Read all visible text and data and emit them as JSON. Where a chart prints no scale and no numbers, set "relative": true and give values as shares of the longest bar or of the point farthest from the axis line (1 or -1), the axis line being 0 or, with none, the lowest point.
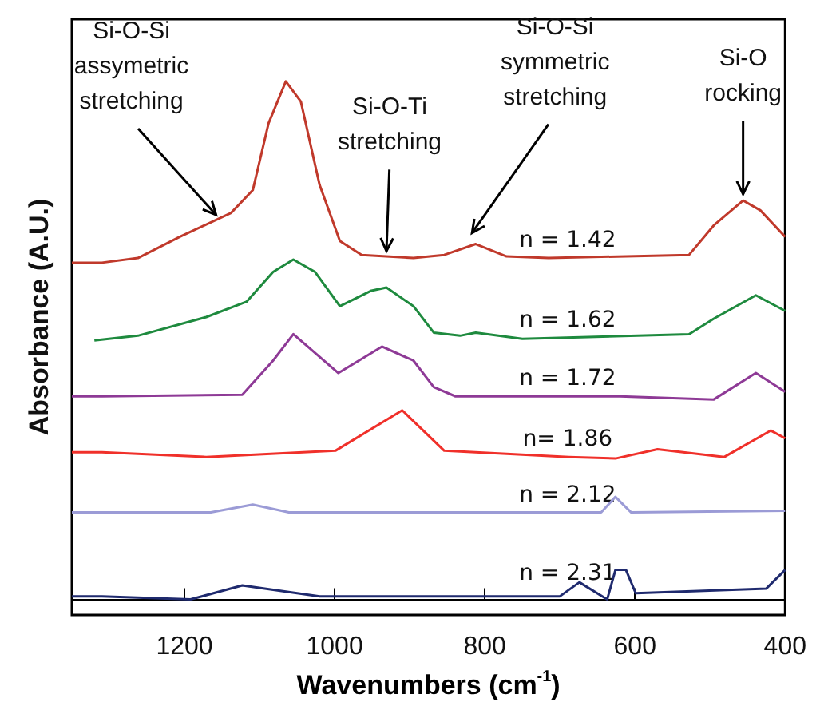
{
  "chart_data": {
    "type": "line",
    "relative": true,
    "xlabel": "Wavenumbers (cm$^{-1}$)",
    "ylabel": "Absorbance (A.U.)",
    "xlim": [
      1350,
      400
    ],
    "xticks": [
      1200,
      1000,
      800,
      600,
      400
    ],
    "grid": false,
    "legend": false,
    "marker": "none",
    "line_style": "solid",
    "series": [
      {
        "name": "n = 1.42",
        "color": "#c0392b",
        "x": [
          1350,
          1310,
          1262,
          1206,
          1138,
          1109,
          1088,
          1065,
          1045,
          1020,
          993,
          964,
          895,
          854,
          812,
          771,
          715,
          528,
          495,
          456,
          433,
          400
        ],
        "values": [
          0.65,
          0.65,
          0.659,
          0.7,
          0.746,
          0.79,
          0.919,
          1,
          0.961,
          0.8,
          0.692,
          0.665,
          0.659,
          0.665,
          0.686,
          0.662,
          0.659,
          0.665,
          0.722,
          0.77,
          0.751,
          0.7
        ]
      },
      {
        "name": "n = 1.62",
        "color": "#1e8a3e",
        "x": [
          1320,
          1262,
          1171,
          1117,
          1082,
          1055,
          1026,
          993,
          951,
          931,
          895,
          868,
          833,
          812,
          750,
          528,
          495,
          439,
          400
        ],
        "values": [
          0.5,
          0.509,
          0.545,
          0.575,
          0.632,
          0.656,
          0.632,
          0.566,
          0.596,
          0.602,
          0.566,
          0.515,
          0.509,
          0.515,
          0.503,
          0.512,
          0.542,
          0.587,
          0.557
        ]
      },
      {
        "name": "n = 1.72",
        "color": "#8e3a96",
        "x": [
          1350,
          1310,
          1123,
          1082,
          1055,
          995,
          937,
          895,
          868,
          839,
          620,
          495,
          439,
          400
        ],
        "values": [
          0.392,
          0.392,
          0.395,
          0.461,
          0.512,
          0.437,
          0.488,
          0.461,
          0.41,
          0.392,
          0.392,
          0.386,
          0.437,
          0.401
        ]
      },
      {
        "name": "n= 1.86",
        "color": "#f0302a",
        "x": [
          1350,
          1310,
          1171,
          999,
          910,
          854,
          688,
          626,
          570,
          481,
          419,
          400
        ],
        "values": [
          0.284,
          0.284,
          0.275,
          0.287,
          0.365,
          0.287,
          0.275,
          0.272,
          0.29,
          0.275,
          0.326,
          0.311
        ]
      },
      {
        "name": "n = 2.12",
        "color": "#9b9bd6",
        "x": [
          1350,
          1310,
          1165,
          1109,
          1061,
          645,
          626,
          605,
          400
        ],
        "values": [
          0.168,
          0.168,
          0.168,
          0.183,
          0.168,
          0.168,
          0.198,
          0.168,
          0.171
        ]
      },
      {
        "name": "n = 2.31",
        "color": "#1f2a6e",
        "x": [
          1350,
          1310,
          1192,
          1123,
          1020,
          700,
          674,
          637,
          626,
          612,
          599,
          425,
          400
        ],
        "values": [
          0.006,
          0.006,
          0,
          0.027,
          0.006,
          0.006,
          0.033,
          0,
          0.057,
          0.057,
          0.012,
          0.021,
          0.057
        ]
      }
    ],
    "annotations": [
      {
        "text": "Si-O-Si\nassymetric\nstretching",
        "x": 1158,
        "y": 0.73
      },
      {
        "text": "Si-O-Ti\nstretching",
        "x": 931,
        "y": 0.66
      },
      {
        "text": "Si-O-Si\nsymmetric\nstretching",
        "x": 817,
        "y": 0.695
      },
      {
        "text": "Si-O\nrocking",
        "x": 456,
        "y": 0.77
      }
    ]
  }
}
